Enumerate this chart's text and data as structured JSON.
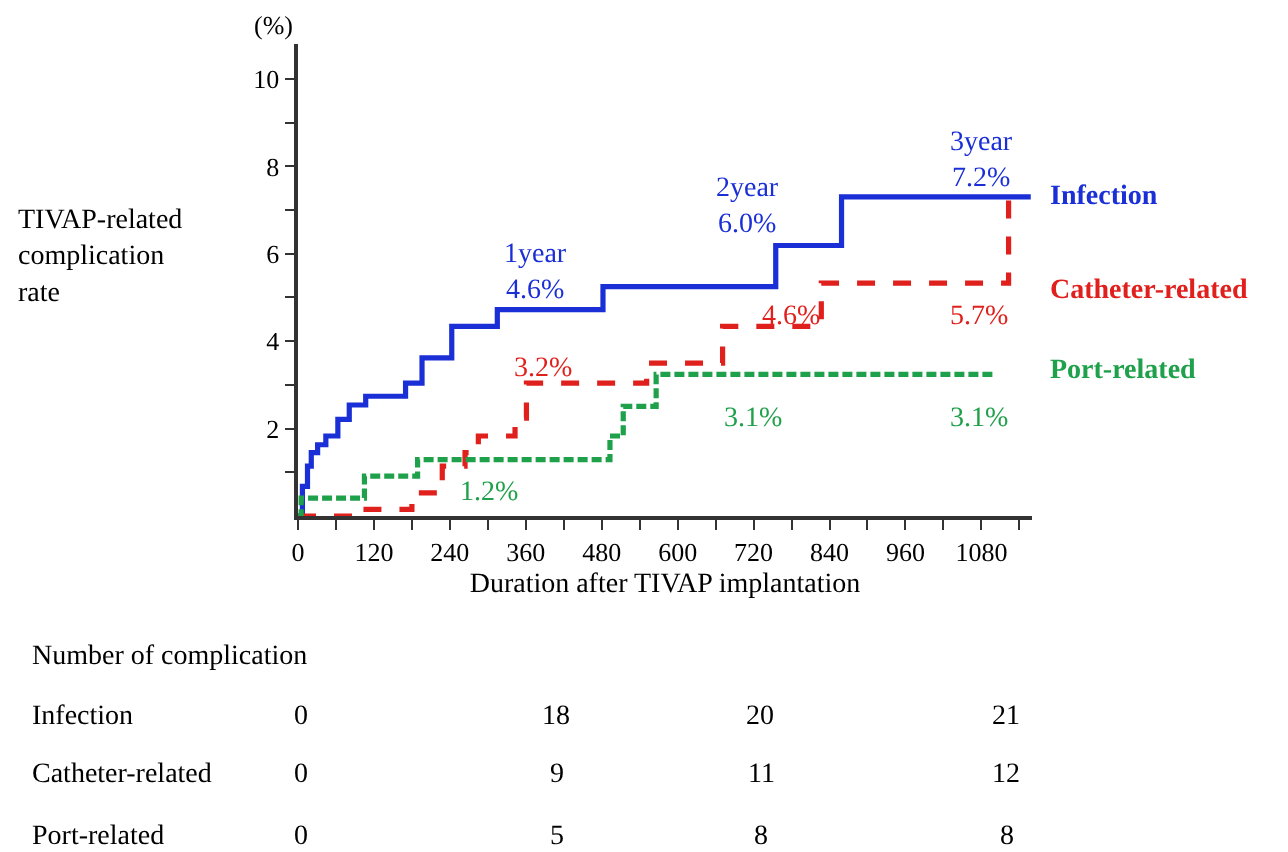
{
  "chart_data": {
    "type": "step",
    "ylabel": "TIVAP-related\ncomplication\nrate",
    "xlabel": "Duration after TIVAP implantation",
    "xlim": [
      0,
      1160
    ],
    "xticks": [
      0,
      {
        "value": 60,
        "label": null
      },
      120,
      {
        "value": 180,
        "label": null
      },
      240,
      {
        "value": 300,
        "label": null
      },
      360,
      {
        "value": 420,
        "label": null
      },
      480,
      {
        "value": 540,
        "label": null
      },
      600,
      {
        "value": 660,
        "label": null
      },
      720,
      {
        "value": 780,
        "label": null
      },
      840,
      {
        "value": 900,
        "label": null
      },
      960,
      {
        "value": 1020,
        "label": null
      },
      1080,
      {
        "value": 1140,
        "label": null
      }
    ],
    "ylim": [
      0,
      10.8
    ],
    "yticks": [
      {
        "value": 1,
        "label": null
      },
      2,
      {
        "value": 3,
        "label": null
      },
      4,
      {
        "value": 5,
        "label": null
      },
      6,
      {
        "value": 7,
        "label": null
      },
      8,
      {
        "value": 9,
        "label": null
      },
      10
    ],
    "legend": false,
    "series": [
      {
        "name": "Infection",
        "color": "#1a2fd6",
        "line_style": "solid",
        "x": [
          0,
          7,
          15,
          21,
          31,
          44,
          63,
          81,
          107,
          170,
          196,
          243,
          315,
          482,
          755,
          859,
          1158
        ],
        "values": [
          0,
          0.68,
          1.14,
          1.45,
          1.63,
          1.83,
          2.21,
          2.54,
          2.74,
          3.04,
          3.62,
          4.34,
          4.72,
          5.25,
          6.19,
          7.3,
          7.3
        ]
      },
      {
        "name": "Catheter-related",
        "color": "#e0201c",
        "line_style": "dashed",
        "x": [
          0,
          102,
          180,
          228,
          264,
          285,
          343,
          361,
          551,
          671,
          827,
          1123
        ],
        "values": [
          0,
          0.15,
          0.53,
          1.14,
          1.45,
          1.83,
          2.24,
          3.04,
          3.5,
          4.34,
          5.33,
          7.3
        ]
      },
      {
        "name": "Port-related",
        "color": "#1fa04a",
        "line_style": "dashed",
        "x": [
          0,
          5,
          105,
          189,
          493,
          514,
          566,
          1099
        ],
        "values": [
          0,
          0.41,
          0.91,
          1.29,
          1.83,
          2.51,
          3.24,
          3.24
        ]
      }
    ],
    "annotations": [
      "1year\n4.6%",
      "2year\n6.0%",
      "3year\n7.2%",
      "3.2%",
      "4.6%",
      "5.7%",
      "1.2%",
      "3.1%",
      "3.1%",
      "(%)",
      "Number of complication",
      "Infection",
      "0",
      "18",
      "20",
      "21",
      "Catheter-related",
      "0",
      "9",
      "11",
      "12",
      "Port-related",
      "0",
      "5",
      "8",
      "8"
    ]
  }
}
